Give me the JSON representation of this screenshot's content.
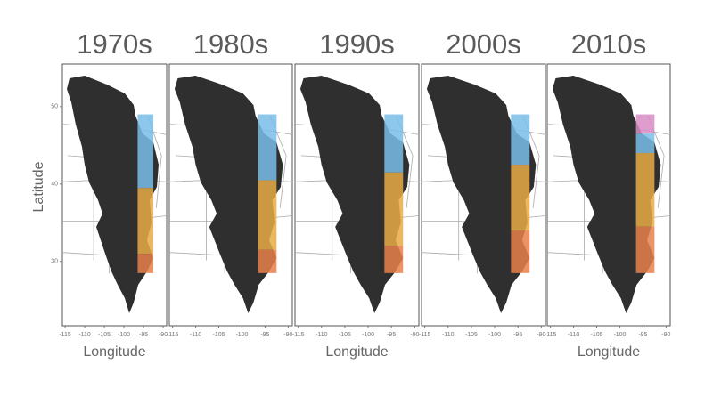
{
  "y_label": "Latitude",
  "x_label": "Longitude",
  "xlim": [
    -115.7,
    -89.1
  ],
  "ylim": [
    21.7,
    55.5
  ],
  "xticks": [
    -115,
    -110,
    -105,
    -100,
    -95,
    -90
  ],
  "yticks": [
    30,
    40,
    50
  ],
  "strip_lon": [
    -96.5,
    -92.5
  ],
  "panels": [
    {
      "title": "1970s",
      "bands": [
        {
          "color": "#79bde8",
          "lat": [
            49,
            39.5
          ]
        },
        {
          "color": "#e9aa45",
          "lat": [
            39.5,
            31
          ]
        },
        {
          "color": "#e8804a",
          "lat": [
            31,
            28.5
          ]
        }
      ]
    },
    {
      "title": "1980s",
      "bands": [
        {
          "color": "#79bde8",
          "lat": [
            49,
            40.5
          ]
        },
        {
          "color": "#e9aa45",
          "lat": [
            40.5,
            31.5
          ]
        },
        {
          "color": "#e8804a",
          "lat": [
            31.5,
            28.5
          ]
        }
      ]
    },
    {
      "title": "1990s",
      "bands": [
        {
          "color": "#79bde8",
          "lat": [
            49,
            41.5
          ]
        },
        {
          "color": "#e9aa45",
          "lat": [
            41.5,
            32
          ]
        },
        {
          "color": "#e8804a",
          "lat": [
            32,
            28.5
          ]
        }
      ]
    },
    {
      "title": "2000s",
      "bands": [
        {
          "color": "#79bde8",
          "lat": [
            49,
            42.5
          ]
        },
        {
          "color": "#e9aa45",
          "lat": [
            42.5,
            34
          ]
        },
        {
          "color": "#e8804a",
          "lat": [
            34,
            28.5
          ]
        }
      ]
    },
    {
      "title": "2010s",
      "bands": [
        {
          "color": "#d98cc6",
          "lat": [
            49,
            46.5
          ]
        },
        {
          "color": "#79bde8",
          "lat": [
            46.5,
            44
          ]
        },
        {
          "color": "#e9aa45",
          "lat": [
            44,
            34.5
          ]
        },
        {
          "color": "#e8804a",
          "lat": [
            34.5,
            28.5
          ]
        }
      ]
    }
  ]
}
